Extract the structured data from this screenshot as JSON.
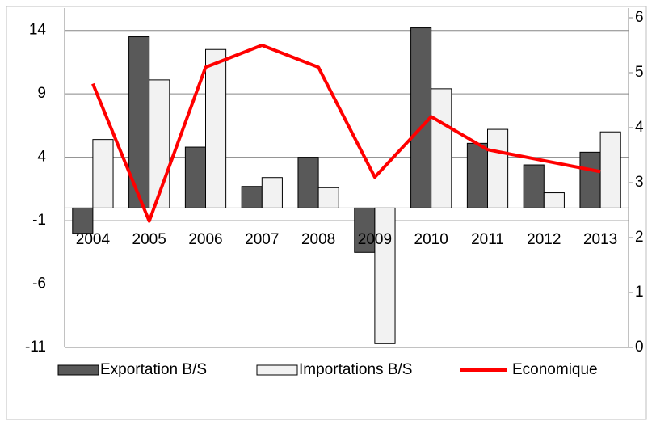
{
  "chart_data": {
    "type": "bar",
    "categories": [
      "2004",
      "2005",
      "2006",
      "2007",
      "2008",
      "2009",
      "2010",
      "2011",
      "2012",
      "2013"
    ],
    "series": [
      {
        "name": "Exportation B/S",
        "color": "#595959",
        "values": [
          -2.0,
          13.5,
          4.8,
          1.7,
          4.0,
          -3.5,
          14.2,
          5.1,
          3.4,
          4.4
        ]
      },
      {
        "name": "Importations B/S",
        "color": "#f2f2f2",
        "values": [
          5.4,
          10.1,
          12.5,
          2.4,
          1.6,
          -10.7,
          9.4,
          6.2,
          1.2,
          6.0
        ]
      },
      {
        "name": "Economique",
        "color": "#ff0000",
        "type": "line",
        "axis": "y2",
        "values": [
          4.8,
          2.3,
          5.1,
          5.5,
          5.1,
          3.1,
          4.2,
          3.6,
          3.4,
          3.2
        ]
      }
    ],
    "ylim": [
      -11,
      15
    ],
    "yticks": [
      -11,
      -6,
      -1,
      4,
      9,
      14
    ],
    "y2lim": [
      0,
      6
    ],
    "y2ticks": [
      0,
      1,
      2,
      3,
      4,
      5,
      6
    ],
    "grid": true,
    "legend": "bottom"
  }
}
